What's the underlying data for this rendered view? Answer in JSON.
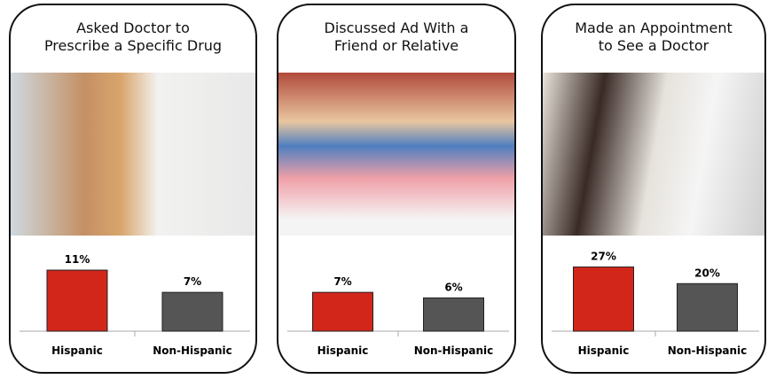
{
  "chart_data": [
    {
      "type": "bar",
      "title": "Asked Doctor to\nPrescribe a Specific Drug",
      "categories": [
        "Hispanic",
        "Non-Hispanic"
      ],
      "values": [
        11,
        7
      ],
      "value_labels": [
        "11%",
        "7%"
      ],
      "colors": [
        "#d2261a",
        "#555555"
      ],
      "ylim": [
        0,
        15
      ]
    },
    {
      "type": "bar",
      "title": "Discussed Ad With a\nFriend or Relative",
      "categories": [
        "Hispanic",
        "Non-Hispanic"
      ],
      "values": [
        7,
        6
      ],
      "value_labels": [
        "7%",
        "6%"
      ],
      "colors": [
        "#d2261a",
        "#555555"
      ],
      "ylim": [
        0,
        15
      ]
    },
    {
      "type": "bar",
      "title": "Made an Appointment\nto See a Doctor",
      "categories": [
        "Hispanic",
        "Non-Hispanic"
      ],
      "values": [
        27,
        20
      ],
      "value_labels": [
        "27%",
        "20%"
      ],
      "colors": [
        "#d2261a",
        "#555555"
      ],
      "ylim": [
        0,
        35
      ]
    }
  ]
}
